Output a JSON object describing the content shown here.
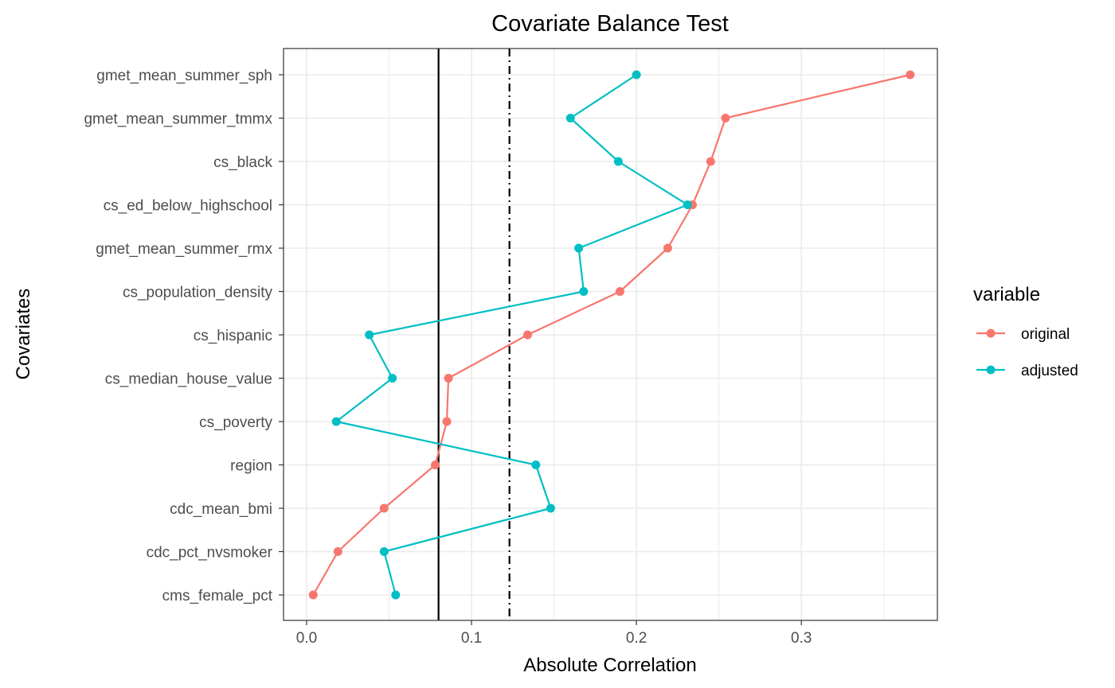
{
  "chart_data": {
    "type": "line",
    "title": "Covariate Balance Test",
    "xlabel": "Absolute Correlation",
    "ylabel": "Covariates",
    "xlim": [
      -0.014,
      0.3825
    ],
    "x_ticks": [
      0.0,
      0.1,
      0.2,
      0.3
    ],
    "x_tick_labels": [
      "0.0",
      "0.1",
      "0.2",
      "0.3"
    ],
    "categories": [
      "gmet_mean_summer_sph",
      "gmet_mean_summer_tmmx",
      "cs_black",
      "cs_ed_below_highschool",
      "gmet_mean_summer_rmx",
      "cs_population_density",
      "cs_hispanic",
      "cs_median_house_value",
      "cs_poverty",
      "region",
      "cdc_mean_bmi",
      "cdc_pct_nvsmoker",
      "cms_female_pct"
    ],
    "series": [
      {
        "name": "original",
        "color": "#F8766D",
        "values": [
          0.366,
          0.254,
          0.245,
          0.234,
          0.219,
          0.19,
          0.134,
          0.086,
          0.085,
          0.078,
          0.047,
          0.019,
          0.004
        ]
      },
      {
        "name": "adjusted",
        "color": "#00BFC4",
        "values": [
          0.2,
          0.16,
          0.189,
          0.231,
          0.165,
          0.168,
          0.038,
          0.052,
          0.018,
          0.139,
          0.148,
          0.047,
          0.054
        ]
      }
    ],
    "reference_lines": [
      {
        "x": 0.08,
        "style": "solid"
      },
      {
        "x": 0.123,
        "style": "dashdot"
      }
    ],
    "legend": {
      "title": "variable",
      "placement": "right"
    },
    "grid": true,
    "theme": "bw"
  }
}
